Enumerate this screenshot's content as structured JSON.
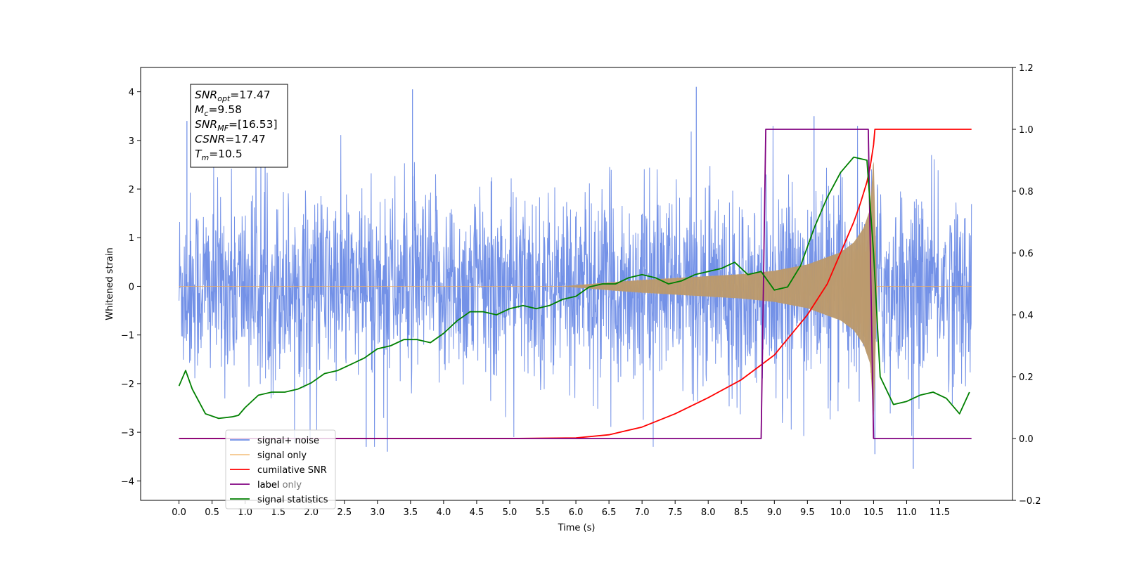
{
  "chart_data": {
    "type": "line",
    "title": "",
    "xlabel": "Time (s)",
    "ylabel": "Whitened strain",
    "xlim": [
      -0.58,
      12.6
    ],
    "ylim": [
      -4.4,
      4.5
    ],
    "y2lim": [
      -0.2,
      1.2
    ],
    "xticks": [
      0.0,
      0.5,
      1.0,
      1.5,
      2.0,
      2.5,
      3.0,
      3.5,
      4.0,
      4.5,
      5.0,
      5.5,
      6.0,
      6.5,
      7.0,
      7.5,
      8.0,
      8.5,
      9.0,
      9.5,
      10.0,
      10.5,
      11.0,
      11.5
    ],
    "xtick_labels": [
      "0.0",
      "0.5",
      "1.0",
      "1.5",
      "2.0",
      "2.5",
      "3.0",
      "3.5",
      "4.0",
      "4.5",
      "5.0",
      "5.5",
      "6.0",
      "6.5",
      "7.0",
      "7.5",
      "8.0",
      "8.5",
      "9.0",
      "9.5",
      "10.0",
      "10.5",
      "11.0",
      "11.5"
    ],
    "yticks": [
      -4,
      -3,
      -2,
      -1,
      0,
      1,
      2,
      3,
      4
    ],
    "ytick_labels": [
      "−4",
      "−3",
      "−2",
      "−1",
      "0",
      "1",
      "2",
      "3",
      "4"
    ],
    "y2ticks": [
      -0.2,
      0.0,
      0.2,
      0.4,
      0.6,
      0.8,
      1.0,
      1.2
    ],
    "y2tick_labels": [
      "−0.2",
      "0.0",
      "0.2",
      "0.4",
      "0.6",
      "0.8",
      "1.0",
      "1.2"
    ],
    "grid": false,
    "legend_position": "lower-left",
    "stats_box": {
      "lines": [
        {
          "main": "SNR",
          "sub": "opt",
          "value": "=17.47"
        },
        {
          "main": "M",
          "sub": "c",
          "value": "=9.58"
        },
        {
          "main": "SNR",
          "sub": "MF",
          "value": "=[16.53]"
        },
        {
          "main": "CSNR",
          "sub": "",
          "value": "=17.47"
        },
        {
          "main": "T",
          "sub": "m",
          "value": "=10.5"
        }
      ]
    },
    "series": [
      {
        "name": "signal+ noise",
        "axis": "left",
        "color": "#6b8be6",
        "kind": "noise",
        "x_range": [
          0.0,
          11.98
        ],
        "typical_amplitude": 2.2,
        "peak_values": [
          3.4,
          4.05,
          4.1,
          3.5,
          -3.3,
          -3.4,
          -3.45,
          -3.75
        ]
      },
      {
        "name": "signal only",
        "axis": "left",
        "color": "#f2ae5a",
        "kind": "chirp",
        "x_range": [
          0.0,
          11.98
        ],
        "merger_time": 10.5,
        "envelope": {
          "x": [
            0.0,
            5.8,
            6.5,
            7.0,
            7.5,
            8.0,
            8.5,
            9.0,
            9.5,
            10.0,
            10.2,
            10.35,
            10.45,
            10.5,
            10.55,
            11.98
          ],
          "y": [
            0.0,
            0.0,
            0.08,
            0.13,
            0.17,
            0.21,
            0.25,
            0.32,
            0.45,
            0.7,
            0.9,
            1.2,
            1.6,
            2.7,
            0.0,
            0.0
          ]
        }
      },
      {
        "name": "cumilative SNR",
        "axis": "right",
        "color": "#ff0000",
        "x": [
          0.0,
          5.0,
          6.0,
          6.5,
          7.0,
          7.5,
          8.0,
          8.5,
          9.0,
          9.5,
          9.8,
          10.0,
          10.2,
          10.3,
          10.4,
          10.45,
          10.5,
          10.52,
          11.98
        ],
        "y": [
          0.0,
          0.0,
          0.002,
          0.012,
          0.037,
          0.08,
          0.132,
          0.19,
          0.27,
          0.4,
          0.5,
          0.6,
          0.7,
          0.76,
          0.83,
          0.88,
          0.95,
          1.0,
          1.0
        ]
      },
      {
        "name": "label",
        "axis": "right",
        "color": "#800080",
        "x": [
          0.0,
          8.8,
          8.87,
          10.42,
          10.5,
          11.98
        ],
        "y": [
          0.0,
          0.0,
          1.0,
          1.0,
          0.0,
          0.0
        ]
      },
      {
        "name": "label only",
        "axis": "right",
        "color": "#c8a2c8",
        "x": [],
        "y": []
      },
      {
        "name": "signal statistics",
        "axis": "right",
        "color": "#008000",
        "x": [
          0.0,
          0.1,
          0.2,
          0.4,
          0.6,
          0.8,
          0.9,
          1.0,
          1.2,
          1.4,
          1.6,
          1.8,
          2.0,
          2.2,
          2.4,
          2.6,
          2.8,
          3.0,
          3.2,
          3.4,
          3.6,
          3.8,
          4.0,
          4.2,
          4.4,
          4.6,
          4.8,
          5.0,
          5.2,
          5.4,
          5.6,
          5.8,
          6.0,
          6.2,
          6.4,
          6.6,
          6.8,
          7.0,
          7.2,
          7.4,
          7.6,
          7.8,
          8.0,
          8.2,
          8.4,
          8.6,
          8.8,
          9.0,
          9.2,
          9.4,
          9.6,
          9.8,
          10.0,
          10.2,
          10.4,
          10.5,
          10.6,
          10.8,
          11.0,
          11.2,
          11.4,
          11.6,
          11.8,
          11.95
        ],
        "y": [
          0.17,
          0.22,
          0.16,
          0.08,
          0.065,
          0.07,
          0.075,
          0.1,
          0.14,
          0.15,
          0.15,
          0.16,
          0.18,
          0.21,
          0.22,
          0.24,
          0.26,
          0.29,
          0.3,
          0.32,
          0.32,
          0.31,
          0.34,
          0.38,
          0.41,
          0.41,
          0.4,
          0.42,
          0.43,
          0.42,
          0.43,
          0.45,
          0.46,
          0.49,
          0.5,
          0.5,
          0.52,
          0.53,
          0.52,
          0.5,
          0.51,
          0.53,
          0.54,
          0.55,
          0.57,
          0.53,
          0.54,
          0.48,
          0.49,
          0.56,
          0.68,
          0.78,
          0.86,
          0.91,
          0.9,
          0.6,
          0.2,
          0.11,
          0.12,
          0.14,
          0.15,
          0.13,
          0.08,
          0.15
        ]
      }
    ]
  }
}
